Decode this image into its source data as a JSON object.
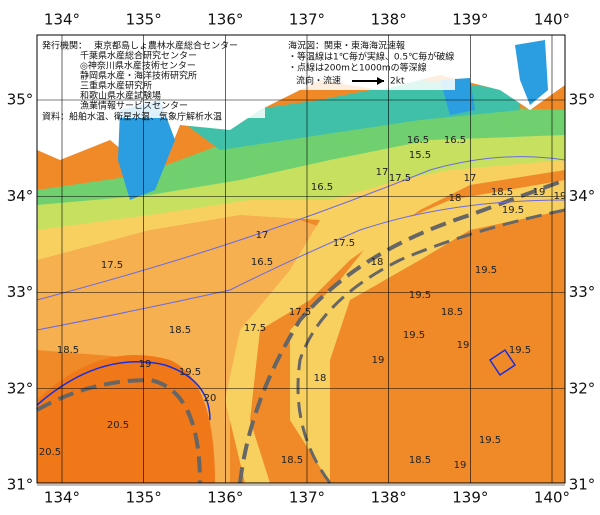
{
  "header": {
    "issuer_label": "発行機関：",
    "issuers": [
      "東京都島しょ農林水産総合センター",
      "千葉県水産総合研究センター",
      "◎神奈川県水産技術センター",
      "静岡県水産・海洋技術研究所",
      "三重県水産研究所",
      "和歌山県水産試験場",
      "漁業情報サービスセンター"
    ],
    "source": "資料：船舶水温、衛星水温、気象庁解析水温",
    "map_title": "海況図：関東・東海海況速報",
    "notes": [
      "・等温線は1℃毎が実線、0.5℃毎が破線",
      "・点線は200mと1000mの等深線"
    ],
    "legend_label": "流向・流速",
    "legend_unit": "2kt"
  },
  "map": {
    "lon_ticks": [
      {
        "value": 134,
        "label": "134°"
      },
      {
        "value": 135,
        "label": "135°"
      },
      {
        "value": 136,
        "label": "136°"
      },
      {
        "value": 137,
        "label": "137°"
      },
      {
        "value": 138,
        "label": "138°"
      },
      {
        "value": 139,
        "label": "139°"
      },
      {
        "value": 140,
        "label": "140°"
      }
    ],
    "lat_ticks": [
      {
        "value": 35,
        "label": "35°"
      },
      {
        "value": 34,
        "label": "34°"
      },
      {
        "value": 33,
        "label": "33°"
      },
      {
        "value": 32,
        "label": "32°"
      },
      {
        "value": 31,
        "label": "31°"
      }
    ],
    "contour_labels": [
      15.5,
      16.5,
      17,
      16.5,
      16.5,
      17,
      17.5,
      18,
      18,
      17.5,
      18.5,
      19,
      19,
      19.5,
      19.5,
      19.5,
      19.5,
      19,
      18.5,
      19.5,
      18.5,
      18,
      17.5,
      17.5,
      18.5,
      19,
      19.5,
      20,
      20.5,
      20.5,
      19,
      18.5,
      19.5,
      19,
      18.5,
      17.5,
      17,
      16.5
    ]
  }
}
